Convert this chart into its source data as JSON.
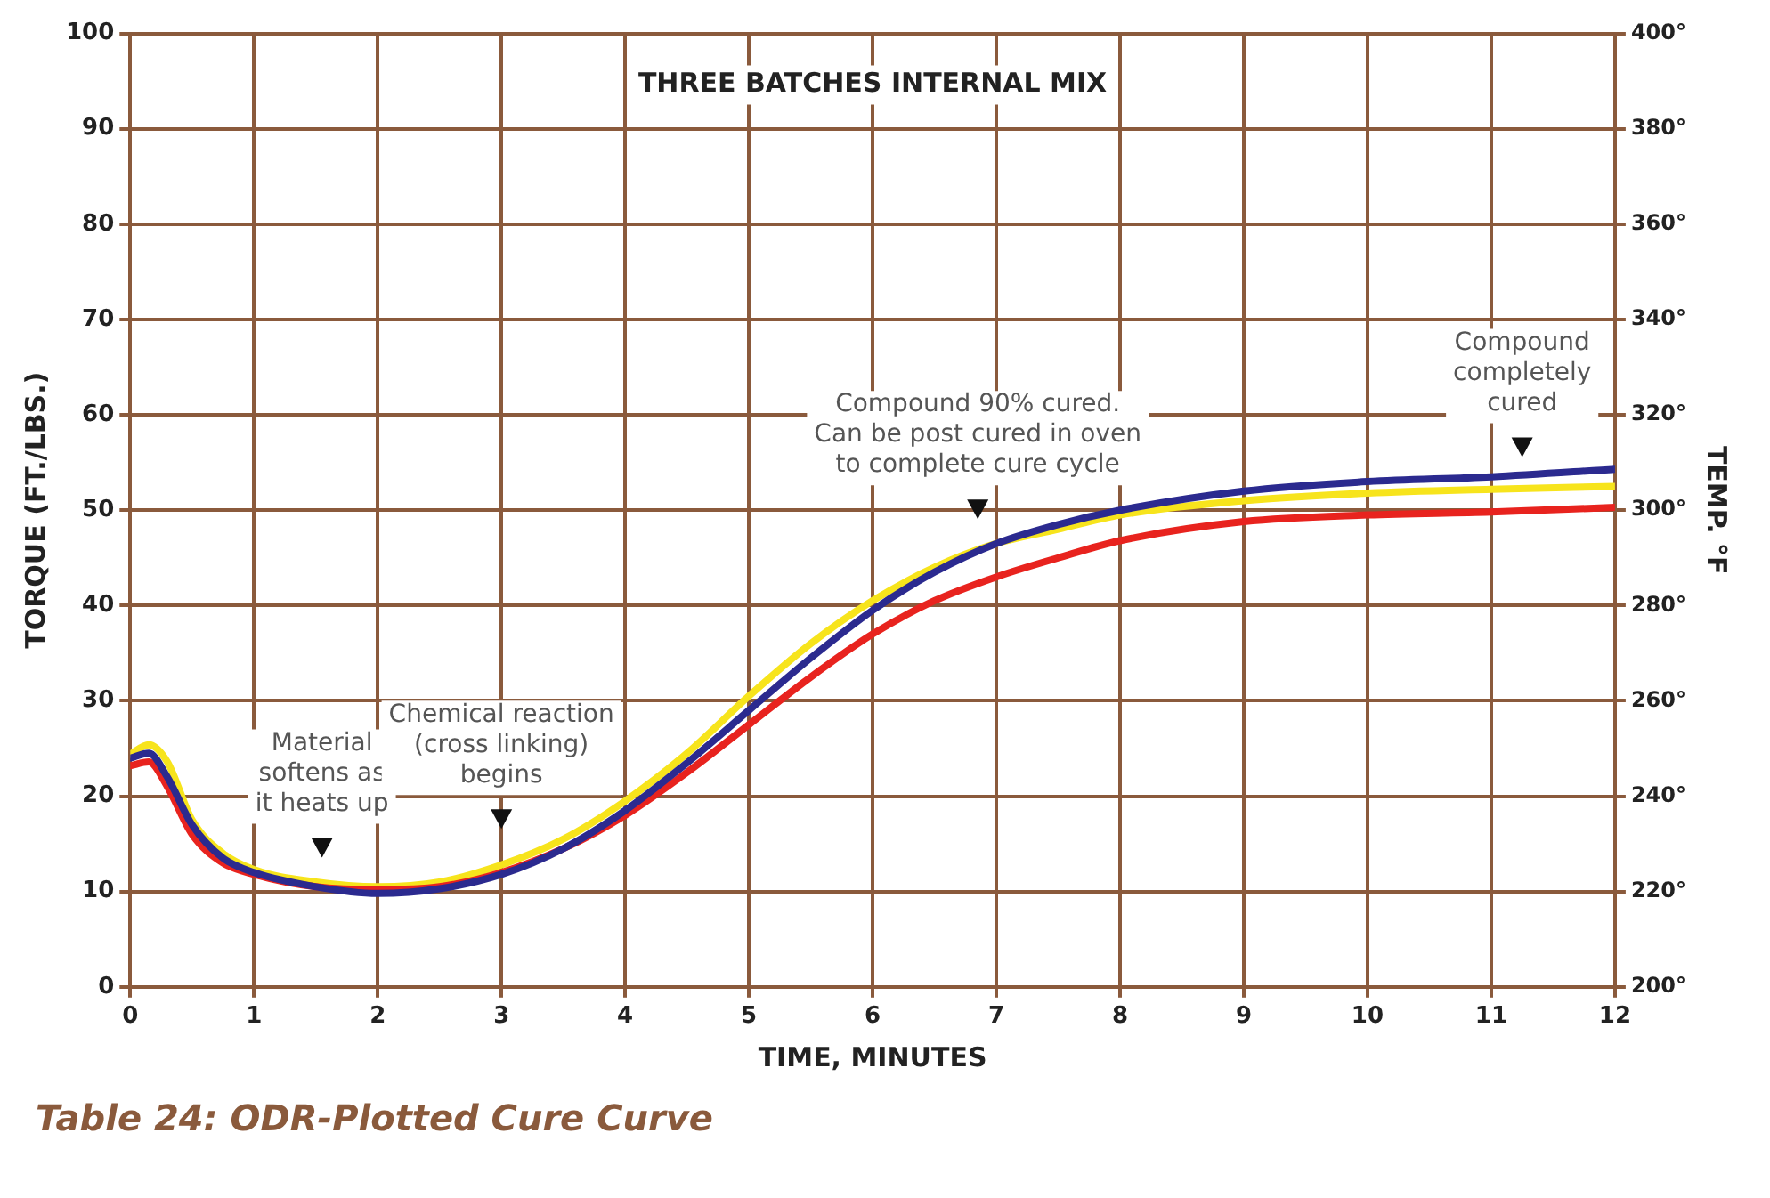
{
  "chart_data": {
    "type": "line",
    "title": "THREE BATCHES INTERNAL MIX",
    "xlabel": "TIME, MINUTES",
    "ylabel": "TORQUE (FT./LBS.)",
    "y2label": "TEMP. °F",
    "x": [
      0,
      0.15,
      0.3,
      0.5,
      0.75,
      1,
      1.5,
      2,
      2.5,
      3,
      3.5,
      4,
      4.5,
      5,
      5.5,
      6,
      6.5,
      7,
      7.5,
      8,
      9,
      10,
      11,
      12
    ],
    "series": [
      {
        "color": "#f7e41c",
        "values": [
          24.4,
          25.4,
          23.6,
          17.5,
          14,
          12.3,
          11,
          10.5,
          11,
          12.8,
          15.5,
          19.5,
          24.5,
          30.5,
          36,
          40.5,
          44,
          46.5,
          48,
          49.5,
          51,
          51.8,
          52.2,
          52.5
        ]
      },
      {
        "color": "#e8231e",
        "values": [
          23.2,
          23.6,
          21,
          16,
          13,
          11.8,
          10.5,
          10.2,
          10.5,
          12,
          14.5,
          18,
          22.5,
          27.5,
          32.5,
          37,
          40.5,
          43,
          45,
          46.8,
          48.8,
          49.5,
          49.8,
          50.3
        ]
      },
      {
        "color": "#2b2a8f",
        "values": [
          24,
          24.5,
          22,
          17,
          13.5,
          12,
          10.5,
          9.8,
          10.3,
          11.8,
          14.5,
          18.5,
          23.5,
          29,
          34.5,
          39.5,
          43.5,
          46.5,
          48.5,
          50,
          52,
          53,
          53.5,
          54.3
        ]
      }
    ],
    "xlim": [
      0,
      12
    ],
    "xticks": [
      0,
      1,
      2,
      3,
      4,
      5,
      6,
      7,
      8,
      9,
      10,
      11,
      12
    ],
    "ylim": [
      0,
      100
    ],
    "yticks": [
      0,
      10,
      20,
      30,
      40,
      50,
      60,
      70,
      80,
      90,
      100
    ],
    "y2lim": [
      200,
      400
    ],
    "y2ticks": [
      {
        "value": 200,
        "label": "200°"
      },
      {
        "value": 220,
        "label": "220°"
      },
      {
        "value": 240,
        "label": "240°"
      },
      {
        "value": 260,
        "label": "260°"
      },
      {
        "value": 280,
        "label": "280°"
      },
      {
        "value": 300,
        "label": "300°"
      },
      {
        "value": 320,
        "label": "320°"
      },
      {
        "value": 340,
        "label": "340°"
      },
      {
        "value": 360,
        "label": "360°"
      },
      {
        "value": 380,
        "label": "380°"
      },
      {
        "value": 400,
        "label": "400°"
      }
    ],
    "grid": true,
    "legend": false,
    "marker": "none",
    "line_style": "solid",
    "annotations": [
      {
        "text": "Material\nsoftens as\nit heats up",
        "x": 1.55,
        "y": 14.5
      },
      {
        "text": "Chemical reaction\n(cross linking)\nbegins",
        "x": 3.0,
        "y": 17.5
      },
      {
        "text": "Compound 90% cured.\nCan be post cured in oven\nto complete cure cycle",
        "x": 6.85,
        "y": 50
      },
      {
        "text": "Compound\ncompletely\ncured",
        "x": 11.25,
        "y": 56.5
      },
      "Table 24: ODR-Plotted Cure Curve"
    ]
  }
}
